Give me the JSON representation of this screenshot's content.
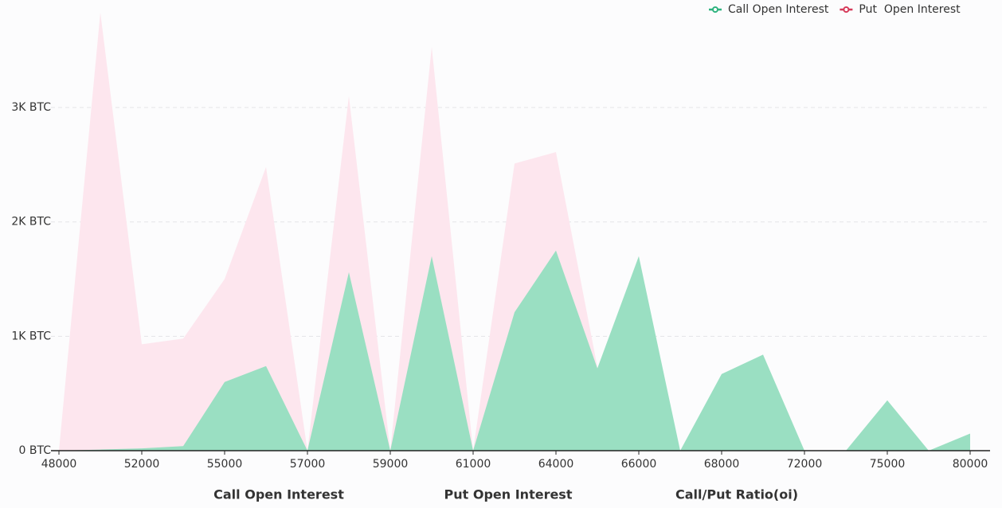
{
  "chart_data": {
    "type": "area",
    "categories": [
      48000,
      null,
      52000,
      null,
      55000,
      null,
      57000,
      null,
      59000,
      null,
      61000,
      null,
      64000,
      null,
      66000,
      null,
      68000,
      null,
      72000,
      null,
      75000,
      null,
      80000
    ],
    "series": [
      {
        "name": "Put  Open Interest",
        "color": "#fde6ee",
        "legend_color": "#d63a5a",
        "values": [
          0,
          3830,
          930,
          980,
          1500,
          2480,
          0,
          3100,
          0,
          3530,
          0,
          2510,
          2610,
          730,
          0,
          0,
          0,
          0,
          0,
          0,
          0,
          0,
          0
        ]
      },
      {
        "name": "Call Open Interest",
        "color": "#9adfc2",
        "legend_color": "#2fb37f",
        "values": [
          0,
          10,
          20,
          40,
          600,
          740,
          0,
          1560,
          0,
          1700,
          0,
          1210,
          1750,
          720,
          1700,
          0,
          670,
          840,
          0,
          0,
          440,
          0,
          150
        ]
      }
    ],
    "ylim": [
      0,
      3940
    ],
    "yticks": [
      {
        "value": 0,
        "label": "0 BTC"
      },
      {
        "value": 1000,
        "label": "1K BTC"
      },
      {
        "value": 2000,
        "label": "2K BTC"
      },
      {
        "value": 3000,
        "label": "3K BTC"
      }
    ],
    "grid": true,
    "legend": "top-right"
  },
  "tabs": [
    "Call Open Interest",
    "Put Open Interest",
    "Call/Put Ratio(oi)"
  ]
}
